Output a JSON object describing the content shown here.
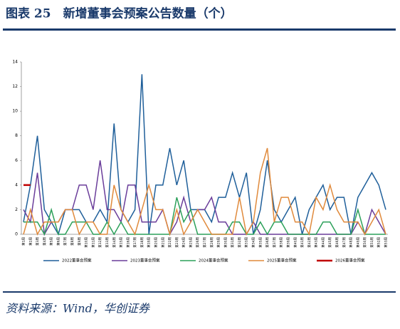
{
  "chart_data": {
    "type": "line",
    "title": "图表 25　新增董事会预案公告数量（个）",
    "source": "资料来源：Wind，华创证券",
    "categories": [
      "第1周",
      "第2周",
      "第3周",
      "第4周",
      "第5周",
      "第6周",
      "第7周",
      "第8周",
      "第9周",
      "第10周",
      "第11周",
      "第12周",
      "第13周",
      "第14周",
      "第15周",
      "第16周",
      "第17周",
      "第18周",
      "第19周",
      "第20周",
      "第21周",
      "第22周",
      "第23周",
      "第24周",
      "第25周",
      "第26周",
      "第27周",
      "第28周",
      "第29周",
      "第30周",
      "第31周",
      "第32周",
      "第33周",
      "第34周",
      "第35周",
      "第36周",
      "第37周",
      "第38周",
      "第39周",
      "第40周",
      "第41周",
      "第42周",
      "第43周",
      "第44周",
      "第45周",
      "第46周",
      "第47周",
      "第48周",
      "第49周",
      "第50周",
      "第51周",
      "第52周",
      "第53周"
    ],
    "series": [
      {
        "name": "2022董事会预案",
        "color": "#1f5f9a",
        "values": [
          1,
          4,
          8,
          2,
          1,
          0,
          2,
          2,
          2,
          1,
          1,
          2,
          1,
          9,
          2,
          1,
          2,
          13,
          0,
          4,
          4,
          7,
          4,
          6,
          2,
          2,
          2,
          1,
          3,
          3,
          5,
          3,
          5,
          0,
          2,
          6,
          2,
          1,
          2,
          3,
          0,
          2,
          3,
          4,
          2,
          3,
          3,
          0,
          3,
          4,
          5,
          4,
          2
        ]
      },
      {
        "name": "2023董事会预案",
        "color": "#6a3d9a",
        "values": [
          2,
          1,
          5,
          0,
          1,
          1,
          2,
          2,
          4,
          4,
          2,
          6,
          2,
          2,
          1,
          4,
          4,
          1,
          1,
          1,
          2,
          0,
          1,
          3,
          1,
          2,
          2,
          3,
          1,
          1,
          0,
          0,
          0,
          1,
          0,
          0,
          0,
          0,
          0,
          0,
          0,
          0,
          0,
          0,
          0,
          0,
          0,
          0,
          1,
          0,
          2,
          1,
          0
        ]
      },
      {
        "name": "2024董事会预案",
        "color": "#2ca05a",
        "values": [
          1,
          1,
          1,
          0,
          2,
          0,
          0,
          1,
          1,
          1,
          0,
          0,
          1,
          0,
          1,
          0,
          0,
          0,
          0,
          0,
          0,
          0,
          3,
          1,
          2,
          0,
          0,
          0,
          0,
          0,
          1,
          1,
          0,
          0,
          1,
          0,
          1,
          1,
          0,
          0,
          0,
          0,
          0,
          1,
          1,
          0,
          0,
          0,
          2,
          0,
          0,
          0,
          0
        ]
      },
      {
        "name": "2025董事会预案",
        "color": "#e08a3c",
        "values": [
          0,
          2,
          0,
          1,
          1,
          1,
          2,
          2,
          0,
          1,
          1,
          0,
          0,
          4,
          2,
          1,
          0,
          2,
          4,
          2,
          2,
          0,
          2,
          0,
          1,
          2,
          1,
          0,
          0,
          0,
          0,
          3,
          0,
          1,
          5,
          7,
          1,
          3,
          3,
          1,
          1,
          0,
          3,
          2,
          4,
          2,
          1,
          1,
          1,
          0,
          1,
          2,
          0
        ]
      },
      {
        "name": "2026董事会预案",
        "color": "#c00000",
        "values": [
          4,
          4,
          null,
          null,
          null,
          null,
          null,
          null,
          null,
          null,
          null,
          null,
          null,
          null,
          null,
          null,
          null,
          null,
          null,
          null,
          null,
          null,
          null,
          null,
          null,
          null,
          null,
          null,
          null,
          null,
          null,
          null,
          null,
          null,
          null,
          null,
          null,
          null,
          null,
          null,
          null,
          null,
          null,
          null,
          null,
          null,
          null,
          null,
          null,
          null,
          null,
          null,
          null
        ]
      }
    ],
    "ylim": [
      0,
      14
    ],
    "yticks": [
      0,
      2,
      4,
      6,
      8,
      10,
      12,
      14
    ],
    "grid": false,
    "legend": "bottom"
  }
}
